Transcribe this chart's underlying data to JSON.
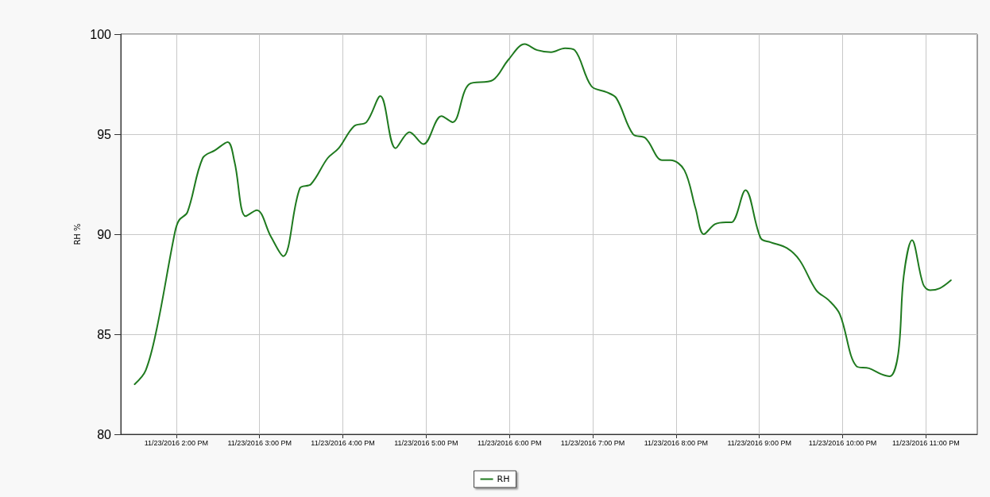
{
  "chart_data": {
    "type": "line",
    "ylabel": "RH %",
    "x": [
      "2016-11-23T13:30",
      "2016-11-23T13:38",
      "2016-11-23T13:46",
      "2016-11-23T13:59",
      "2016-11-23T14:02",
      "2016-11-23T14:08",
      "2016-11-23T14:19",
      "2016-11-23T14:28",
      "2016-11-23T14:37",
      "2016-11-23T14:42",
      "2016-11-23T14:50",
      "2016-11-23T14:58",
      "2016-11-23T15:08",
      "2016-11-23T15:17",
      "2016-11-23T15:29",
      "2016-11-23T15:37",
      "2016-11-23T15:49",
      "2016-11-23T15:57",
      "2016-11-23T16:08",
      "2016-11-23T16:17",
      "2016-11-23T16:27",
      "2016-11-23T16:38",
      "2016-11-23T16:48",
      "2016-11-23T16:58",
      "2016-11-23T17:11",
      "2016-11-23T17:19",
      "2016-11-23T17:31",
      "2016-11-23T17:48",
      "2016-11-23T17:59",
      "2016-11-23T18:11",
      "2016-11-23T18:20",
      "2016-11-23T18:30",
      "2016-11-23T18:40",
      "2016-11-23T18:47",
      "2016-11-23T18:59",
      "2016-11-23T19:10",
      "2016-11-23T19:17",
      "2016-11-23T19:29",
      "2016-11-23T19:38",
      "2016-11-23T19:50",
      "2016-11-23T19:56",
      "2016-11-23T20:06",
      "2016-11-23T20:14",
      "2016-11-23T20:20",
      "2016-11-23T20:28",
      "2016-11-23T20:36",
      "2016-11-23T20:40",
      "2016-11-23T20:50",
      "2016-11-23T21:01",
      "2016-11-23T21:08",
      "2016-11-23T21:20",
      "2016-11-23T21:29",
      "2016-11-23T21:41",
      "2016-11-23T21:50",
      "2016-11-23T21:58",
      "2016-11-23T22:10",
      "2016-11-23T22:19",
      "2016-11-23T22:28",
      "2016-11-23T22:34",
      "2016-11-23T22:40",
      "2016-11-23T22:44",
      "2016-11-23T22:50",
      "2016-11-23T22:58",
      "2016-11-23T23:03",
      "2016-11-23T23:10",
      "2016-11-23T23:18"
    ],
    "series": [
      {
        "name": "RH",
        "color": "#1f7a1f",
        "values": [
          82.5,
          83.2,
          85.3,
          90.1,
          90.7,
          91.1,
          93.8,
          94.2,
          94.6,
          93.6,
          90.9,
          91.2,
          89.9,
          88.9,
          92.3,
          92.5,
          93.8,
          94.3,
          95.4,
          95.6,
          96.9,
          94.3,
          95.1,
          94.5,
          95.9,
          95.6,
          97.5,
          97.7,
          98.7,
          99.5,
          99.2,
          99.1,
          99.3,
          99.2,
          97.4,
          97.1,
          96.8,
          95,
          94.8,
          93.7,
          93.7,
          93.2,
          91.3,
          90,
          90.5,
          90.6,
          90.6,
          92.2,
          89.8,
          89.6,
          89.3,
          88.7,
          87.2,
          86.7,
          86,
          83.4,
          83.3,
          83,
          82.9,
          84,
          87.9,
          89.7,
          87.5,
          87.2,
          87.3,
          87.7
        ]
      }
    ],
    "xlim": [
      "2016-11-23T13:20",
      "2016-11-23T23:37"
    ],
    "xticks": [
      {
        "value": "2016-11-23T14:00",
        "label": "11/23/2016 2:00 PM"
      },
      {
        "value": "2016-11-23T15:00",
        "label": "11/23/2016 3:00 PM"
      },
      {
        "value": "2016-11-23T16:00",
        "label": "11/23/2016 4:00 PM"
      },
      {
        "value": "2016-11-23T17:00",
        "label": "11/23/2016 5:00 PM"
      },
      {
        "value": "2016-11-23T18:00",
        "label": "11/23/2016 6:00 PM"
      },
      {
        "value": "2016-11-23T19:00",
        "label": "11/23/2016 7:00 PM"
      },
      {
        "value": "2016-11-23T20:00",
        "label": "11/23/2016 8:00 PM"
      },
      {
        "value": "2016-11-23T21:00",
        "label": "11/23/2016 9:00 PM"
      },
      {
        "value": "2016-11-23T22:00",
        "label": "11/23/2016 10:00 PM"
      },
      {
        "value": "2016-11-23T23:00",
        "label": "11/23/2016 11:00 PM"
      }
    ],
    "ylim": [
      80,
      100
    ],
    "yticks": [
      80,
      85,
      90,
      95,
      100
    ],
    "grid": true,
    "legend": "bottom",
    "line_style": "solid",
    "marker": "none"
  }
}
